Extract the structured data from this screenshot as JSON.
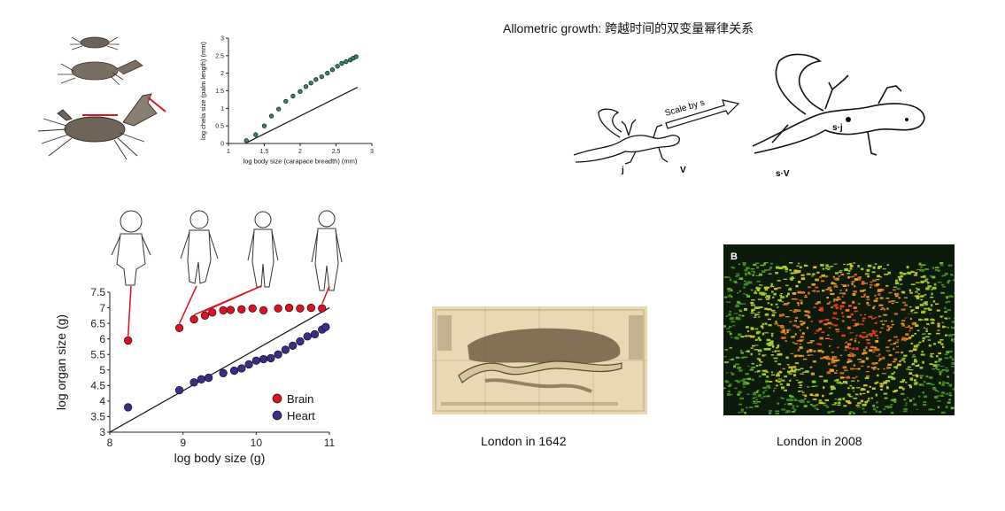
{
  "slide": {
    "title": "Allometric growth: 跨越时间的双变量幂律关系"
  },
  "crab_illustration": {
    "icon": "fiddler-crab-growth-stages-icon"
  },
  "lizard_diagram": {
    "icon": "lizard-scaling-icon",
    "arrow_label": "Scale by s",
    "small_length_label": "j",
    "small_volume_label": "V",
    "large_length_label": "s·j",
    "large_volume_label": "s·V"
  },
  "human_figures": {
    "icon": "human-growth-stages-icon"
  },
  "london_1642": {
    "caption": "London in 1642",
    "icon": "historic-map-icon"
  },
  "london_2008": {
    "caption": "London in 2008",
    "icon": "road-density-map-icon",
    "panel_letter": "B"
  },
  "chart_data": [
    {
      "type": "scatter",
      "xlabel": "log body size (carapace breadth) (mm)",
      "ylabel": "log chela size (palm length) (mm)",
      "xlim": [
        1,
        3
      ],
      "ylim": [
        0,
        3
      ],
      "x_ticks": [
        "1",
        "1.5",
        "2",
        "2.5",
        "3"
      ],
      "y_ticks": [
        "0",
        "0.5",
        "1",
        "1.5",
        "2",
        "2.5",
        "3"
      ],
      "series": [
        {
          "color": "#2e8b6a",
          "x": [
            1.25,
            1.38,
            1.5,
            1.6,
            1.7,
            1.8,
            1.9,
            2.0,
            2.08,
            2.15,
            2.22,
            2.3,
            2.38,
            2.45,
            2.52,
            2.58,
            2.64,
            2.7,
            2.74,
            2.78
          ],
          "y": [
            0.08,
            0.25,
            0.5,
            0.78,
            0.98,
            1.2,
            1.35,
            1.48,
            1.62,
            1.72,
            1.82,
            1.9,
            2.0,
            2.1,
            2.2,
            2.28,
            2.33,
            2.38,
            2.43,
            2.47
          ]
        }
      ],
      "reference_line": {
        "x": [
          1.25,
          2.8
        ],
        "y": [
          0.02,
          1.6
        ]
      }
    },
    {
      "type": "scatter",
      "xlabel": "log body size (g)",
      "ylabel": "log organ size (g)",
      "xlim": [
        8,
        11
      ],
      "ylim": [
        3,
        7.5
      ],
      "x_ticks": [
        "8",
        "9",
        "10",
        "11"
      ],
      "y_ticks": [
        "3",
        "3.5",
        "4",
        "4.5",
        "5",
        "5.5",
        "6",
        "6.5",
        "7",
        "7.5"
      ],
      "legend_position": "bottom-right",
      "series": [
        {
          "name": "Brain",
          "color": "#e01020",
          "x": [
            8.25,
            8.95,
            9.15,
            9.3,
            9.4,
            9.55,
            9.65,
            9.8,
            9.95,
            10.1,
            10.3,
            10.45,
            10.6,
            10.75,
            10.9
          ],
          "y": [
            5.95,
            6.35,
            6.63,
            6.75,
            6.85,
            6.92,
            6.93,
            6.95,
            6.98,
            6.92,
            6.98,
            7.0,
            6.98,
            7.0,
            6.98
          ]
        },
        {
          "name": "Heart",
          "color": "#3a2d8a",
          "x": [
            8.25,
            8.95,
            9.15,
            9.25,
            9.35,
            9.55,
            9.7,
            9.8,
            9.9,
            10.0,
            10.1,
            10.2,
            10.3,
            10.4,
            10.5,
            10.6,
            10.7,
            10.8,
            10.9,
            10.95
          ],
          "y": [
            3.8,
            4.35,
            4.6,
            4.7,
            4.75,
            4.9,
            4.98,
            5.05,
            5.18,
            5.3,
            5.35,
            5.38,
            5.5,
            5.65,
            5.78,
            5.92,
            6.08,
            6.15,
            6.3,
            6.38
          ]
        }
      ],
      "reference_line": {
        "x": [
          8,
          11
        ],
        "y": [
          3,
          7
        ]
      }
    }
  ]
}
